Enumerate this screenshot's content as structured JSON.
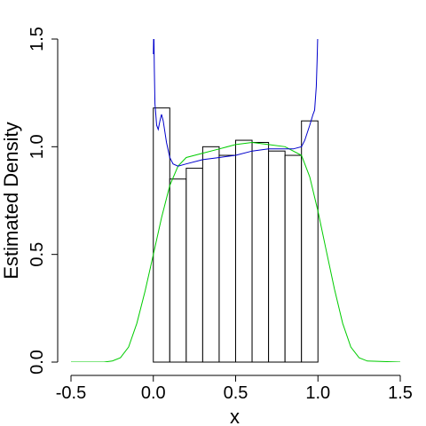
{
  "chart_data": {
    "type": "bar",
    "title": "",
    "xlabel": "x",
    "ylabel": "Estimated Density",
    "xlim": [
      -0.5,
      1.5
    ],
    "ylim": [
      0,
      1.5
    ],
    "x_ticks": [
      -0.5,
      0.0,
      0.5,
      1.0,
      1.5
    ],
    "x_tick_labels": [
      "-0.5",
      "0.0",
      "0.5",
      "1.0",
      "1.5"
    ],
    "y_ticks": [
      0.0,
      0.5,
      1.0,
      1.5
    ],
    "y_tick_labels": [
      "0.0",
      "0.5",
      "1.0",
      "1.5"
    ],
    "grid": false,
    "histogram": {
      "bin_edges": [
        0.0,
        0.1,
        0.2,
        0.3,
        0.4,
        0.5,
        0.6,
        0.7,
        0.8,
        0.9,
        1.0
      ],
      "values": [
        1.18,
        0.85,
        0.9,
        1.0,
        0.96,
        1.03,
        1.02,
        0.98,
        0.96,
        1.12
      ]
    },
    "series": [
      {
        "color": "#00cc00",
        "x": [
          -0.5,
          -0.3,
          -0.25,
          -0.2,
          -0.15,
          -0.1,
          -0.05,
          0.0,
          0.05,
          0.1,
          0.15,
          0.2,
          0.3,
          0.4,
          0.5,
          0.6,
          0.7,
          0.8,
          0.9,
          0.95,
          1.0,
          1.05,
          1.1,
          1.15,
          1.2,
          1.25,
          1.3,
          1.5
        ],
        "y": [
          0.0,
          0.0,
          0.005,
          0.02,
          0.07,
          0.18,
          0.33,
          0.5,
          0.67,
          0.82,
          0.91,
          0.95,
          0.97,
          0.99,
          1.01,
          1.02,
          1.01,
          1.0,
          0.96,
          0.86,
          0.7,
          0.52,
          0.34,
          0.18,
          0.07,
          0.02,
          0.005,
          0.0
        ]
      },
      {
        "color": "#0000cc",
        "x": [
          0.0,
          0.003,
          0.006,
          0.01,
          0.02,
          0.03,
          0.04,
          0.05,
          0.06,
          0.08,
          0.1,
          0.12,
          0.15,
          0.2,
          0.3,
          0.4,
          0.5,
          0.6,
          0.7,
          0.8,
          0.85,
          0.9,
          0.92,
          0.95,
          0.97,
          0.98,
          0.99,
          0.995,
          1.0
        ],
        "y": [
          1.43,
          1.56,
          1.36,
          1.2,
          1.1,
          1.08,
          1.12,
          1.15,
          1.12,
          1.02,
          0.95,
          0.92,
          0.91,
          0.92,
          0.94,
          0.95,
          0.96,
          0.98,
          0.99,
          0.99,
          0.99,
          1.0,
          1.03,
          1.1,
          1.15,
          1.17,
          1.28,
          1.4,
          1.56
        ]
      }
    ]
  }
}
